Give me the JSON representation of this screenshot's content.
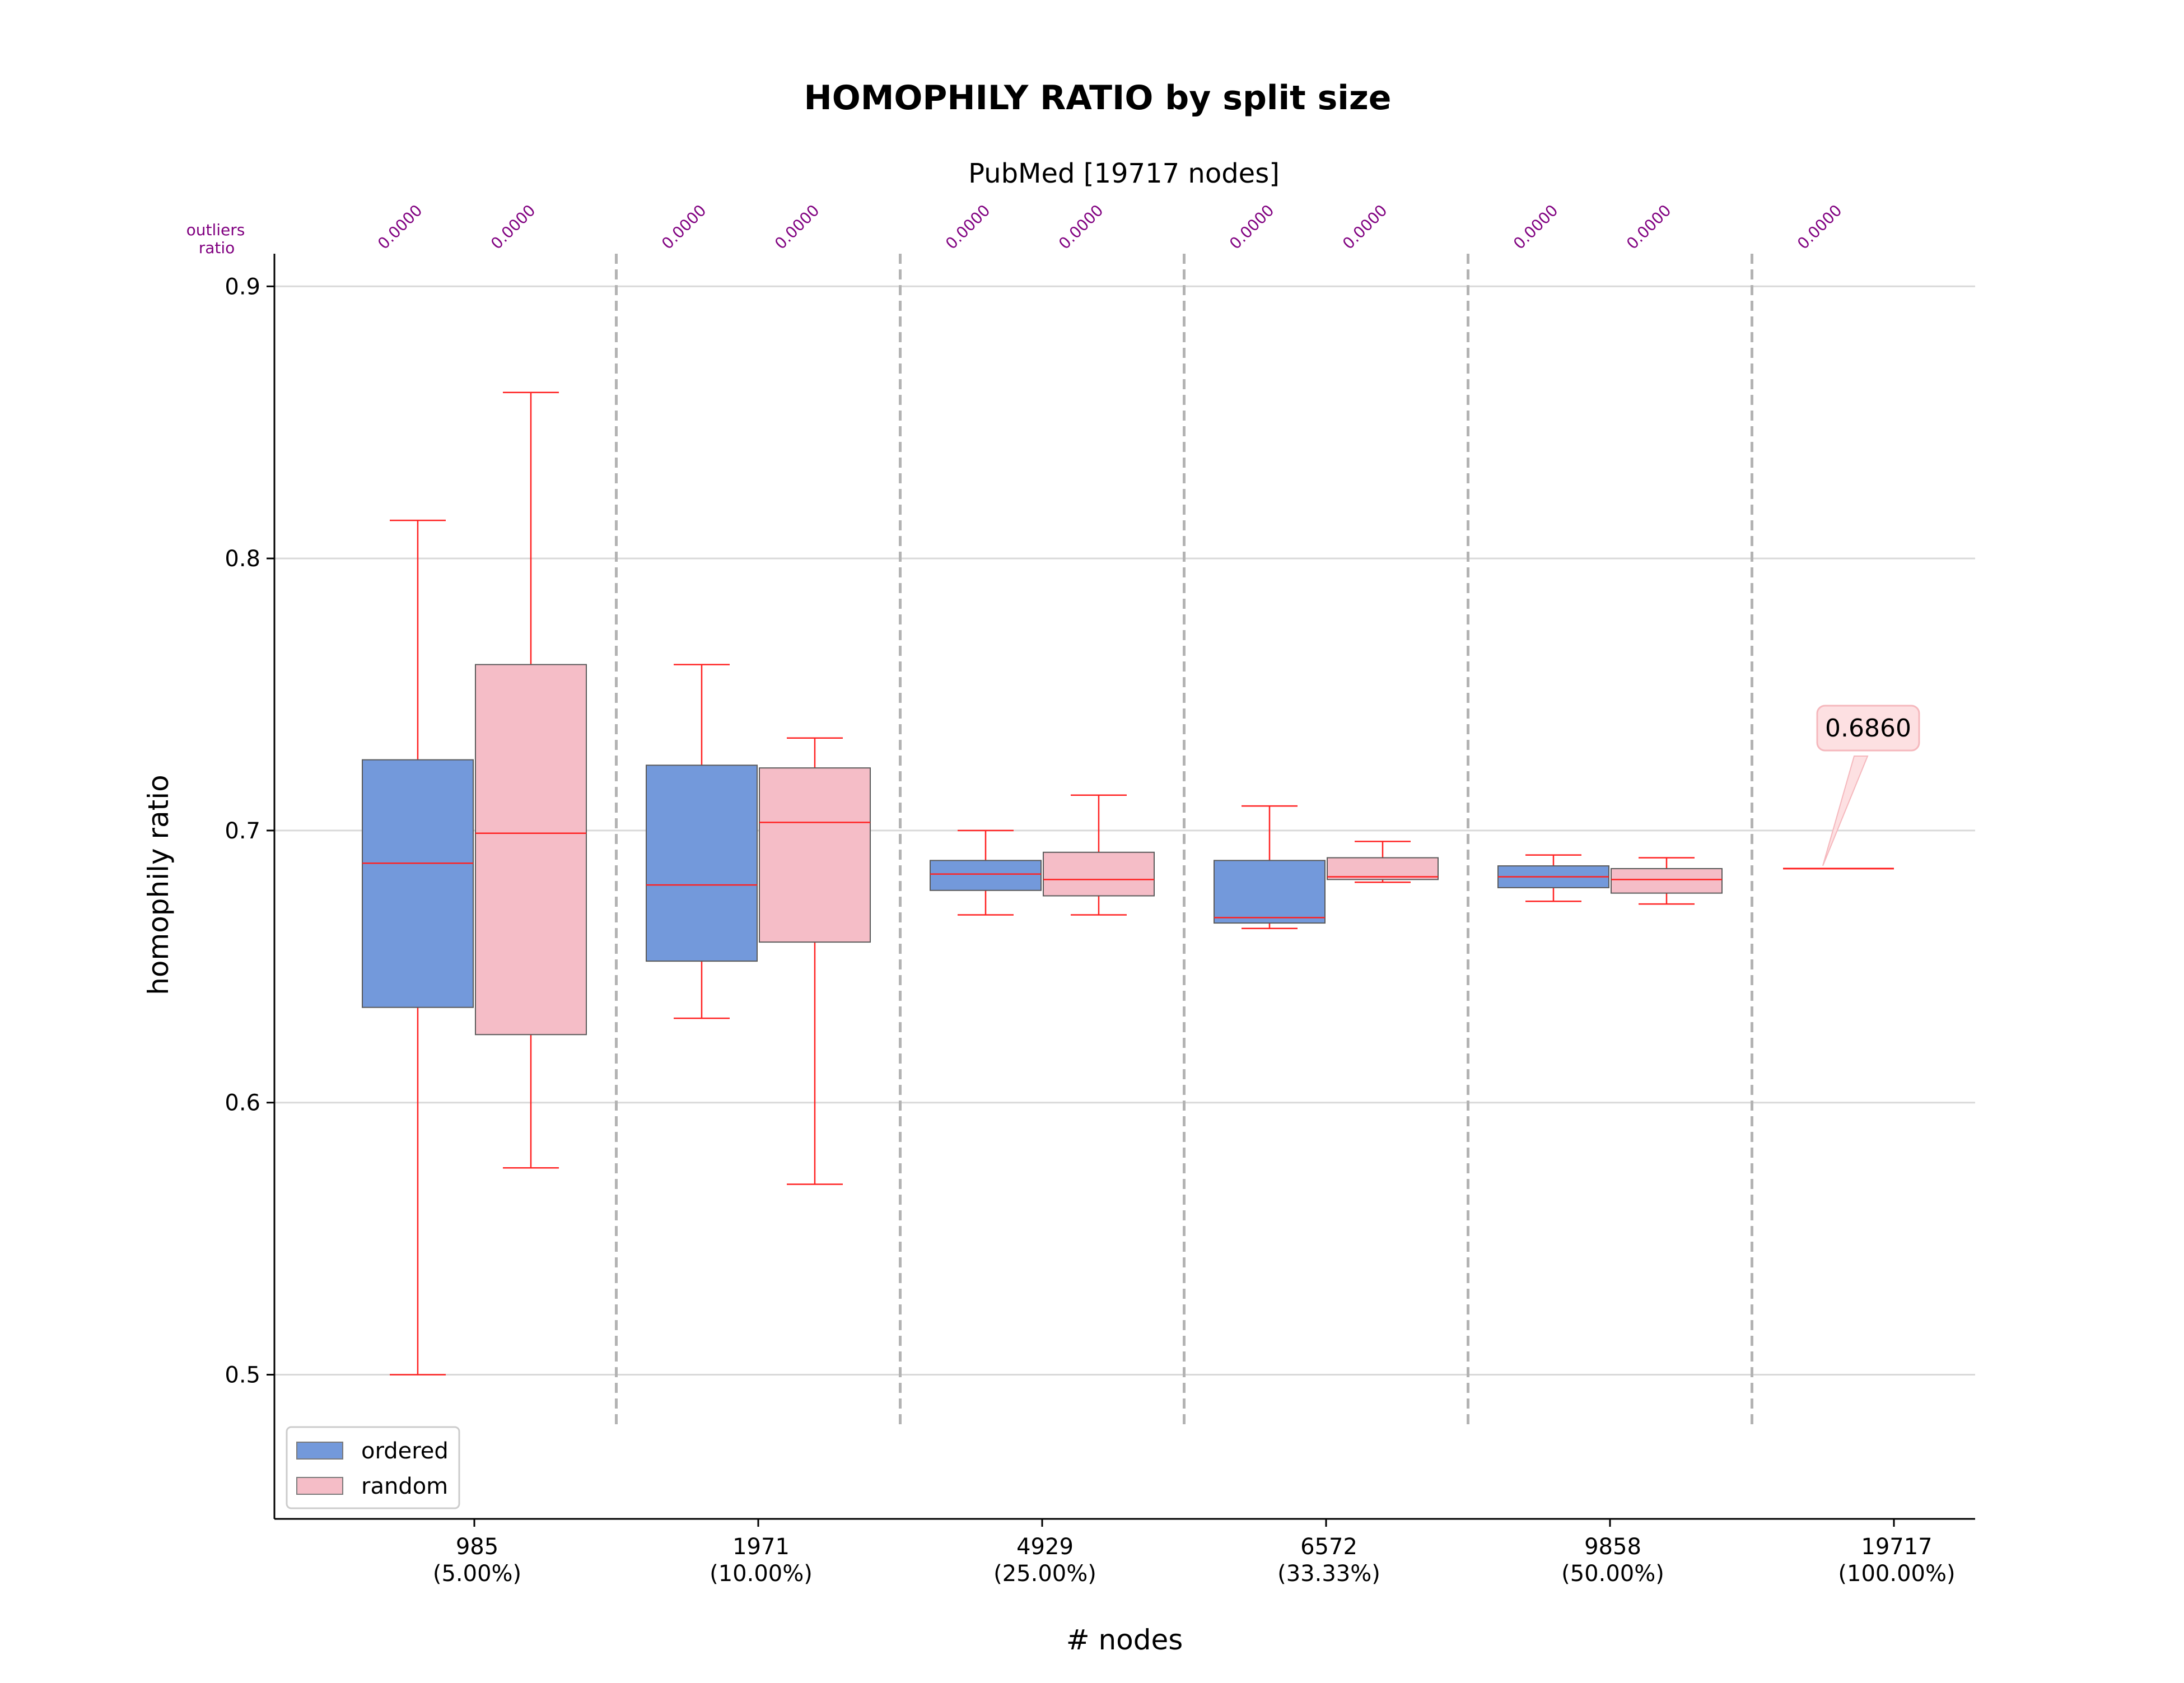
{
  "chart_data": {
    "type": "box",
    "title": "HOMOPHILY RATIO by split size",
    "subtitle": "PubMed [19717 nodes]",
    "xlabel": "# nodes",
    "ylabel": "homophily ratio",
    "ylim": [
      0.447,
      0.912
    ],
    "yticks": [
      "0.5",
      "0.6",
      "0.7",
      "0.8",
      "0.9"
    ],
    "grid": "horizontal",
    "legend_position": "lower-left",
    "outliers_header": [
      "outliers",
      "ratio"
    ],
    "categories": [
      {
        "label": "985",
        "sublabel": "(5.00%)"
      },
      {
        "label": "1971",
        "sublabel": "(10.00%)"
      },
      {
        "label": "4929",
        "sublabel": "(25.00%)"
      },
      {
        "label": "6572",
        "sublabel": "(33.33%)"
      },
      {
        "label": "9858",
        "sublabel": "(50.00%)"
      },
      {
        "label": "19717",
        "sublabel": "(100.00%)"
      }
    ],
    "series": [
      {
        "name": "ordered",
        "color": "#7399DB",
        "boxes": [
          {
            "whislo": 0.5,
            "q1": 0.635,
            "med": 0.688,
            "q3": 0.726,
            "whishi": 0.814,
            "outliers_ratio": "0.0000"
          },
          {
            "whislo": 0.631,
            "q1": 0.652,
            "med": 0.68,
            "q3": 0.724,
            "whishi": 0.761,
            "outliers_ratio": "0.0000"
          },
          {
            "whislo": 0.669,
            "q1": 0.678,
            "med": 0.684,
            "q3": 0.689,
            "whishi": 0.7,
            "outliers_ratio": "0.0000"
          },
          {
            "whislo": 0.664,
            "q1": 0.666,
            "med": 0.668,
            "q3": 0.689,
            "whishi": 0.709,
            "outliers_ratio": "0.0000"
          },
          {
            "whislo": 0.674,
            "q1": 0.679,
            "med": 0.683,
            "q3": 0.687,
            "whishi": 0.691,
            "outliers_ratio": "0.0000"
          },
          null
        ]
      },
      {
        "name": "random",
        "color": "#F5BDC7",
        "boxes": [
          {
            "whislo": 0.576,
            "q1": 0.625,
            "med": 0.699,
            "q3": 0.761,
            "whishi": 0.861,
            "outliers_ratio": "0.0000"
          },
          {
            "whislo": 0.57,
            "q1": 0.659,
            "med": 0.703,
            "q3": 0.723,
            "whishi": 0.734,
            "outliers_ratio": "0.0000"
          },
          {
            "whislo": 0.669,
            "q1": 0.676,
            "med": 0.682,
            "q3": 0.692,
            "whishi": 0.713,
            "outliers_ratio": "0.0000"
          },
          {
            "whislo": 0.681,
            "q1": 0.682,
            "med": 0.683,
            "q3": 0.69,
            "whishi": 0.696,
            "outliers_ratio": "0.0000"
          },
          {
            "whislo": 0.673,
            "q1": 0.677,
            "med": 0.682,
            "q3": 0.686,
            "whishi": 0.69,
            "outliers_ratio": "0.0000"
          },
          null
        ]
      }
    ],
    "full_graph": {
      "value": 0.686,
      "outliers_ratio": "0.0000",
      "annotation": "0.6860"
    }
  }
}
